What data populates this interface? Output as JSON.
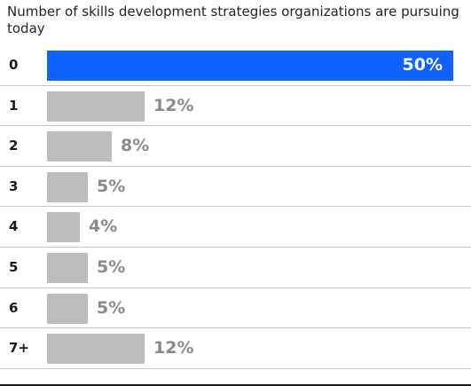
{
  "chart_data": {
    "type": "bar",
    "orientation": "horizontal",
    "title": "Number of skills development strategies organizations are pursuing today",
    "categories": [
      "0",
      "1",
      "2",
      "3",
      "4",
      "5",
      "6",
      "7+"
    ],
    "values": [
      50,
      12,
      8,
      5,
      4,
      5,
      5,
      12
    ],
    "value_labels": [
      "50%",
      "12%",
      "8%",
      "5%",
      "4%",
      "5%",
      "5%",
      "12%"
    ],
    "highlight_index": 0,
    "xlim": [
      0,
      50
    ],
    "colors": {
      "highlight": "#0f62fe",
      "default": "#bdbdbd",
      "value_text": "#8a8a8a",
      "value_text_inside": "#ffffff"
    },
    "grid": false
  }
}
